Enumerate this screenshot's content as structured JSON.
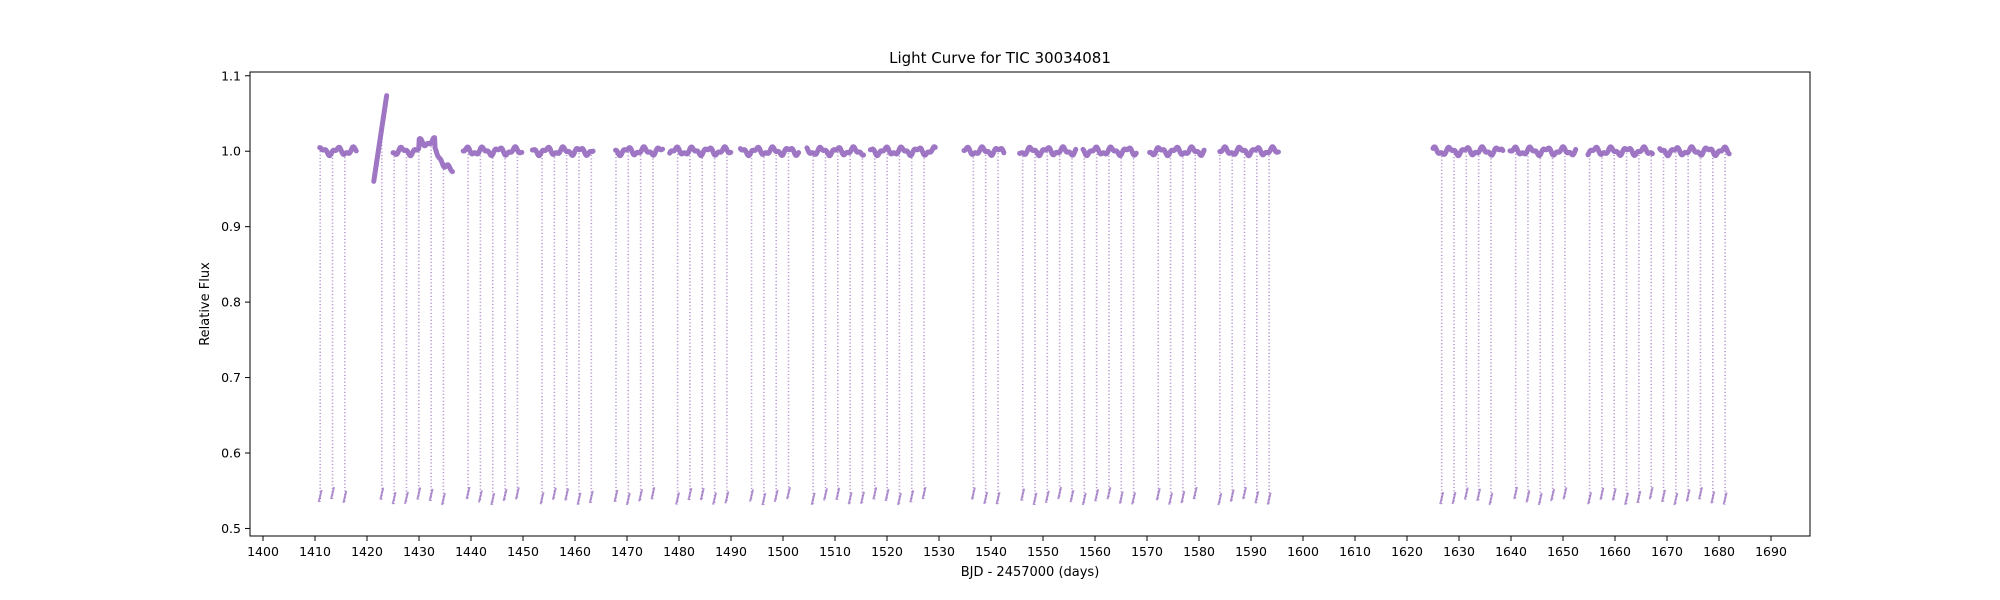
{
  "chart_data": {
    "type": "scatter",
    "title": "Light Curve for TIC 30034081",
    "xlabel": "BJD - 2457000 (days)",
    "ylabel": "Relative Flux",
    "xlim": [
      1397.5,
      1697.5
    ],
    "ylim": [
      0.49,
      1.105
    ],
    "x_ticks": [
      1400,
      1410,
      1420,
      1430,
      1440,
      1450,
      1460,
      1470,
      1480,
      1490,
      1500,
      1510,
      1520,
      1530,
      1540,
      1550,
      1560,
      1570,
      1580,
      1590,
      1600,
      1610,
      1620,
      1630,
      1640,
      1650,
      1660,
      1670,
      1680,
      1690
    ],
    "y_ticks": [
      0.5,
      0.6,
      0.7,
      0.8,
      0.9,
      1.0,
      1.1
    ],
    "grid": false,
    "legend": "none",
    "color": "#9467bd",
    "series": [
      {
        "baseline_segments": [
          [
            1410.9,
            1418.0
          ],
          [
            1421.3,
            1423.8
          ],
          [
            1425.0,
            1436.5
          ],
          [
            1438.5,
            1449.8
          ],
          [
            1451.8,
            1463.5
          ],
          [
            1467.8,
            1476.9
          ],
          [
            1478.2,
            1490.0
          ],
          [
            1491.8,
            1503.0
          ],
          [
            1504.6,
            1515.5
          ],
          [
            1516.8,
            1529.3
          ],
          [
            1534.8,
            1542.5
          ],
          [
            1545.5,
            1556.3
          ],
          [
            1557.7,
            1568.0
          ],
          [
            1570.5,
            1581.0
          ],
          [
            1584.0,
            1595.3
          ],
          [
            1625.0,
            1638.5
          ],
          [
            1639.8,
            1652.5
          ],
          [
            1654.8,
            1667.2
          ],
          [
            1668.6,
            1682.0
          ]
        ],
        "eclipse_period_days": 2.37,
        "eclipse_epoch": 1411.0,
        "eclipse_min_flux": 0.535
      }
    ]
  }
}
